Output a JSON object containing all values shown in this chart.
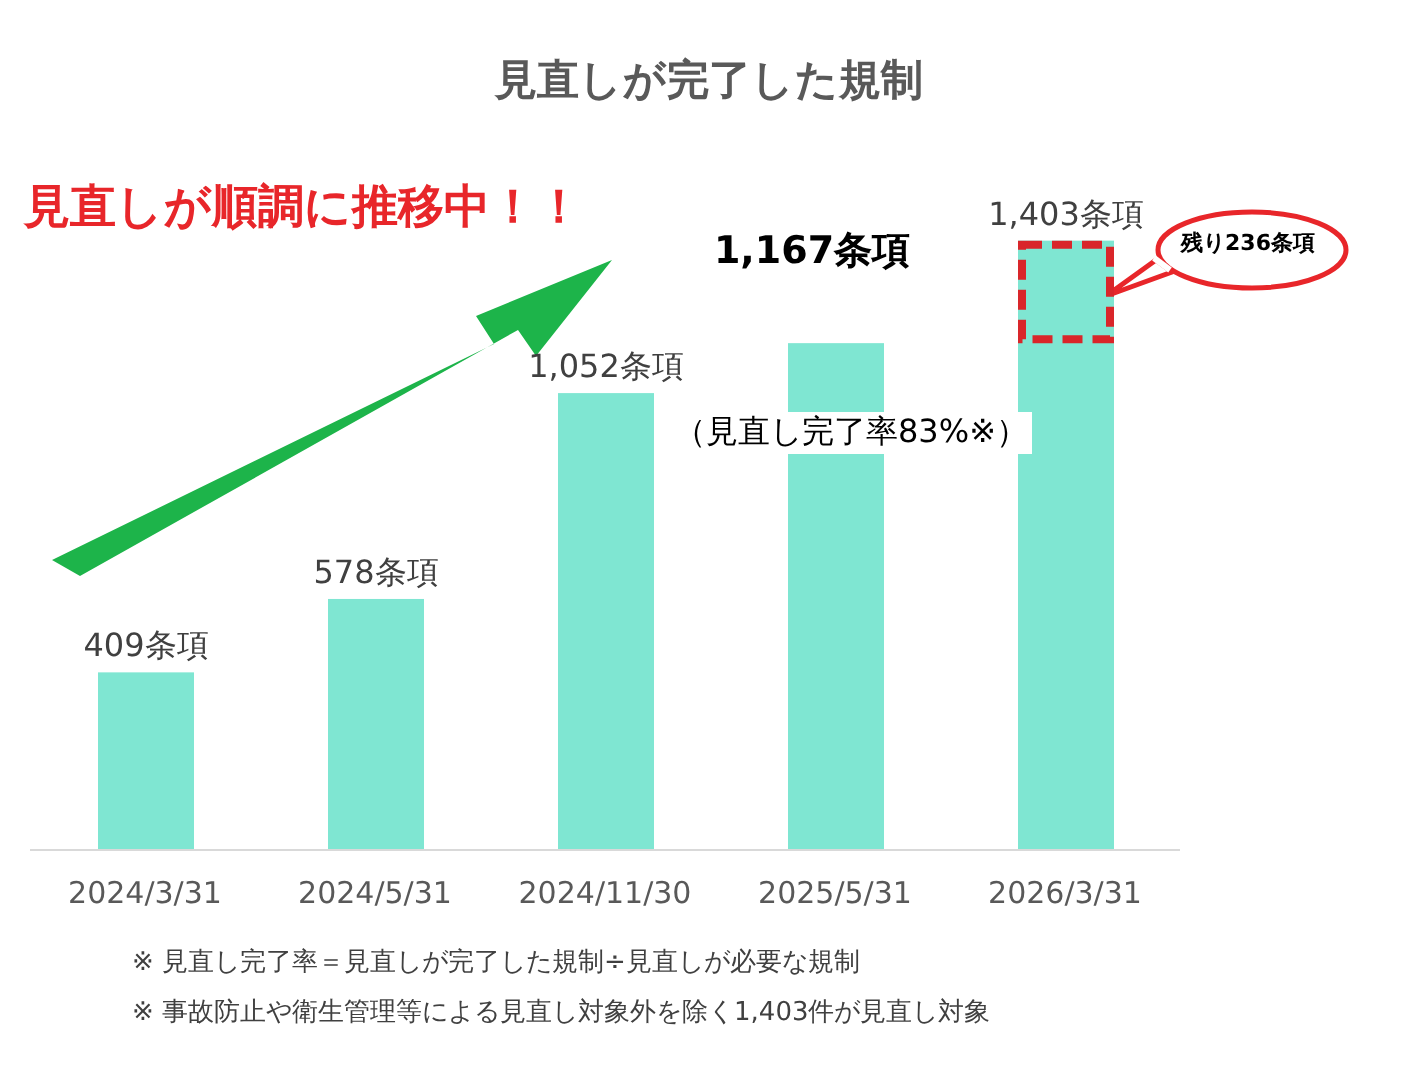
{
  "chart_data": {
    "type": "bar",
    "title": "見直しが完了した規制",
    "categories": [
      "2024/3/31",
      "2024/5/31",
      "2024/11/30",
      "2025/5/31",
      "2026/3/31"
    ],
    "values": [
      409,
      578,
      1052,
      1167,
      1403
    ],
    "color": "#7fe6d2",
    "value_labels": [
      "409条項",
      "578条項",
      "1,052条項",
      "1,167条項",
      "1,403条項"
    ],
    "annotations": [
      "見直しが順調に推移中！！",
      "（見直し完了率83%※）",
      "残り236条項",
      "※ 見直し完了率＝見直しが完了した規制÷見直しが必要な規制",
      "※ 事故防止や衛生管理等による見直し対象外を除く1,403件が見直し対象"
    ],
    "grid": false,
    "legend": false
  }
}
